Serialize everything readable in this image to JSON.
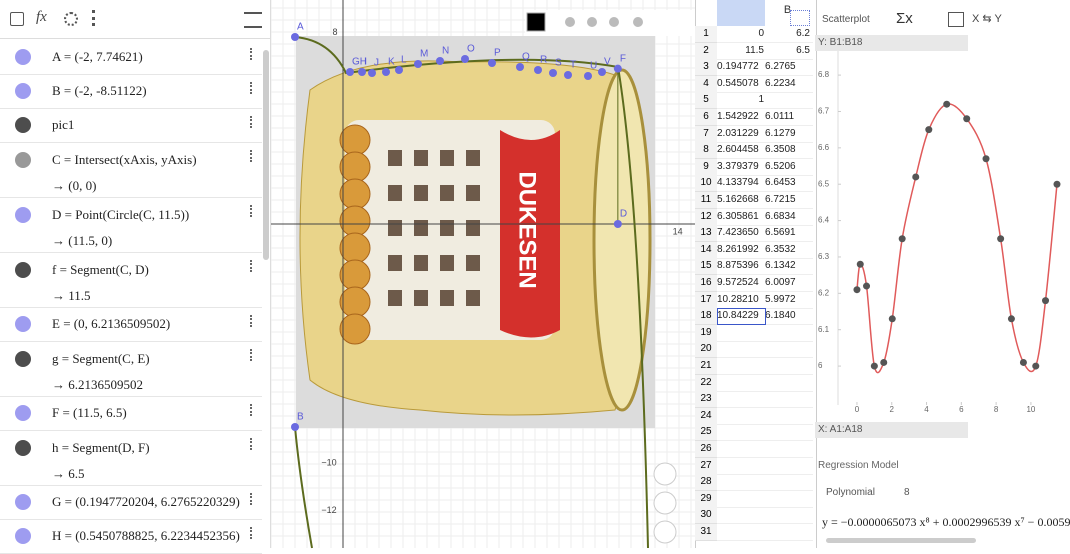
{
  "algebra_toolbar": {
    "fx": "fx"
  },
  "algebra": [
    {
      "text": "A = (-2, 7.74621)",
      "color": "#9e9cf0"
    },
    {
      "text": "B = (-2, -8.51122)",
      "color": "#9e9cf0"
    },
    {
      "text": "pic1",
      "color": "#4d4d4d"
    },
    {
      "text": "C = Intersect(xAxis, yAxis)",
      "output": "→ (0, 0)",
      "color": "#999999"
    },
    {
      "text": "D = Point(Circle(C, 11.5))",
      "output": "→ (11.5, 0)",
      "color": "#9e9cf0"
    },
    {
      "text": "f = Segment(C, D)",
      "output": "→ 11.5",
      "color": "#4d4d4d"
    },
    {
      "text": "E = (0, 6.2136509502)",
      "color": "#9e9cf0"
    },
    {
      "text": "g = Segment(C, E)",
      "output": "→ 6.2136509502",
      "color": "#4d4d4d"
    },
    {
      "text": "F = (11.5, 6.5)",
      "color": "#9e9cf0"
    },
    {
      "text": "h = Segment(D, F)",
      "output": "→ 6.5",
      "color": "#4d4d4d"
    },
    {
      "text": "G = (0.1947720204, 6.2765220329)",
      "color": "#9e9cf0"
    },
    {
      "text": "H = (0.5450788825, 6.2234452356)",
      "color": "#9e9cf0"
    }
  ],
  "graphics": {
    "axis_labels": [
      "8",
      "14",
      "−10",
      "−12"
    ],
    "point_labels": [
      "A",
      "B",
      "D",
      "F",
      "GH",
      "I",
      "J",
      "K",
      "L",
      "M",
      "N",
      "O",
      "P",
      "Q",
      "R",
      "S",
      "T",
      "U",
      "V"
    ],
    "image_text": "DUKESEN"
  },
  "spreadsheet": {
    "column_header": "B",
    "row_numbers": [
      1,
      2,
      3,
      4,
      5,
      6,
      7,
      8,
      9,
      10,
      11,
      12,
      13,
      14,
      15,
      16,
      17,
      18,
      19,
      20,
      21,
      22,
      23,
      24,
      25,
      26,
      27,
      28,
      29,
      30,
      31
    ],
    "rows": [
      [
        "0",
        "6.2"
      ],
      [
        "11.5",
        "6.5"
      ],
      [
        "0.194772",
        "6.2765"
      ],
      [
        "0.545078",
        "6.2234"
      ],
      [
        "1",
        null
      ],
      [
        "1.542922",
        "6.0111"
      ],
      [
        "2.031229",
        "6.1279"
      ],
      [
        "2.604458",
        "6.3508"
      ],
      [
        "3.379379",
        "6.5206"
      ],
      [
        "4.133794",
        "6.6453"
      ],
      [
        "5.162668",
        "6.7215"
      ],
      [
        "6.305861",
        "6.6834"
      ],
      [
        "7.423650",
        "6.5691"
      ],
      [
        "8.261992",
        "6.3532"
      ],
      [
        "8.875396",
        "6.1342"
      ],
      [
        "9.572524",
        "6.0097"
      ],
      [
        "10.28210",
        "5.9972"
      ],
      [
        "10.84229",
        "6.1840"
      ]
    ]
  },
  "scatterplot": {
    "tab": "Scatterplot",
    "stats_icon": "Σx",
    "swap": "X ⇆ Y",
    "y_range": "Y: B1:B18",
    "x_range": "X: A1:A18",
    "regression_label": "Regression Model",
    "model": "Polynomial",
    "degree": "8",
    "equation": "y = −0.0000065073 x⁸ + 0.0002996539 x⁷ − 0.0059"
  },
  "chart_data": {
    "type": "scatter",
    "x": [
      0,
      0.19,
      0.55,
      1,
      1.54,
      2.03,
      2.6,
      3.38,
      4.13,
      5.16,
      6.31,
      7.42,
      8.26,
      8.88,
      9.57,
      10.28,
      10.84,
      11.5
    ],
    "y": [
      6.21,
      6.28,
      6.22,
      6.0,
      6.01,
      6.13,
      6.35,
      6.52,
      6.65,
      6.72,
      6.68,
      6.57,
      6.35,
      6.13,
      6.01,
      6.0,
      6.18,
      6.5
    ],
    "color": "#555555",
    "curve_color": "#e05a5a",
    "xlim": [
      -1.09,
      11.96
    ],
    "ylim": [
      5.893,
      6.869
    ],
    "xticks": [
      0,
      2,
      4,
      6,
      8,
      10
    ],
    "yticks": [
      6,
      6.1,
      6.2,
      6.3,
      6.4,
      6.5,
      6.6,
      6.7,
      6.8
    ]
  }
}
